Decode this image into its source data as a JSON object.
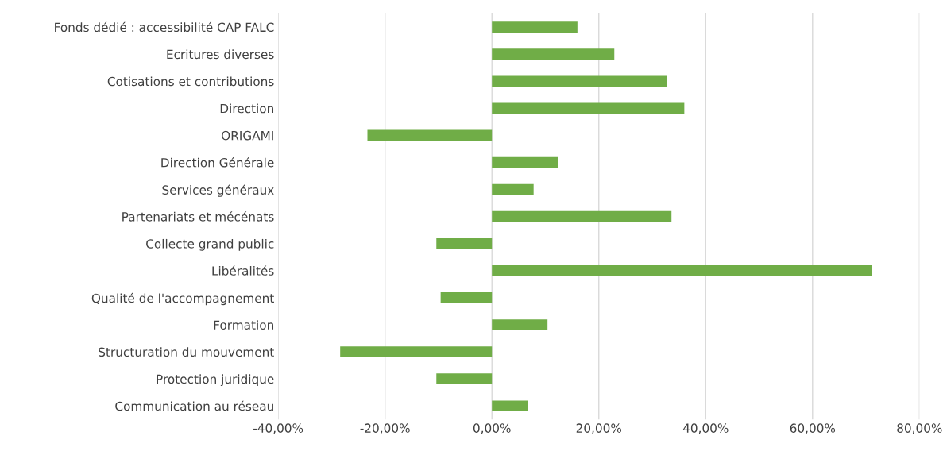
{
  "chart_data": {
    "type": "bar",
    "orientation": "horizontal",
    "categories": [
      "Fonds dédié : accessibilité CAP FALC",
      "Ecritures diverses",
      "Cotisations et contributions",
      "Direction",
      "ORIGAMI",
      "Direction Générale",
      "Services généraux",
      "Partenariats et mécénats",
      "Collecte grand public",
      "Libéralités",
      "Qualité de l'accompagnement",
      "Formation",
      "Structuration du mouvement",
      "Protection juridique",
      "Communication au réseau"
    ],
    "values": [
      16.0,
      22.9,
      32.7,
      36.0,
      -23.3,
      12.4,
      7.8,
      33.6,
      -10.4,
      71.1,
      -9.6,
      10.4,
      -28.4,
      -10.4,
      6.8
    ],
    "color": "#70ad47",
    "xlim": [
      -40,
      80
    ],
    "xticks": [
      {
        "value": -40,
        "label": "-40,00%"
      },
      {
        "value": -20,
        "label": "-20,00%"
      },
      {
        "value": 0,
        "label": "0,00%"
      },
      {
        "value": 20,
        "label": "20,00%"
      },
      {
        "value": 40,
        "label": "40,00%"
      },
      {
        "value": 60,
        "label": "60,00%"
      },
      {
        "value": 80,
        "label": "80,00%"
      }
    ],
    "grid": "x"
  }
}
